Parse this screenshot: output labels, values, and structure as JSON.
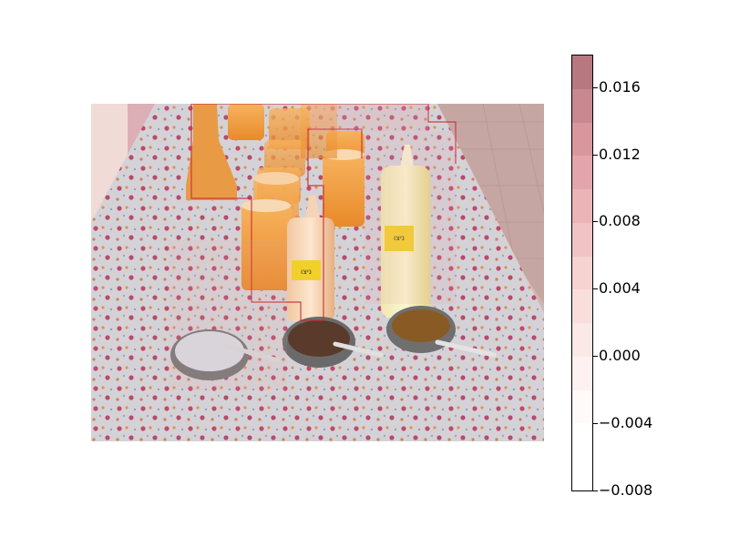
{
  "photo": {
    "subject": "table with flowered cloth, juice glasses, squeeze bottles and bowls with spoons",
    "bottle_labels": [
      {
        "text": "ניצו"
      },
      {
        "text": "ניצו"
      }
    ]
  },
  "colorbar": {
    "colors_top_to_bottom": [
      "#b77880",
      "#c98890",
      "#d9969d",
      "#e3a5ab",
      "#ebb5b8",
      "#f1c3c4",
      "#f6d2d1",
      "#f9dedc",
      "#fbe9e7",
      "#fdf2f1",
      "#fefafa",
      "#ffffff",
      "#ffffff"
    ],
    "tick_labels": [
      "0.016",
      "0.012",
      "0.008",
      "0.004",
      "0.000",
      "−0.004",
      "−0.008"
    ],
    "vmin": -0.008,
    "vmax": 0.018
  }
}
